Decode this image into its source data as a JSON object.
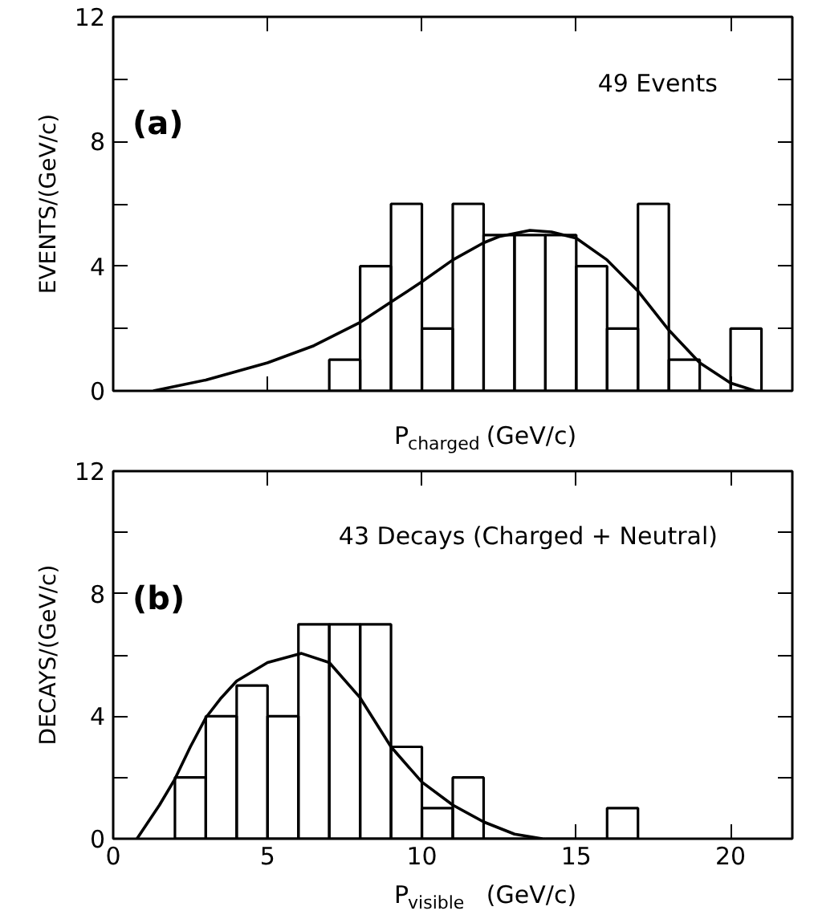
{
  "chart_data": [
    {
      "type": "histogram",
      "xlabel": "P$_{charged}$ (GeV/c)",
      "ylabel": "EVENTS/(GeV/c)",
      "annotations": [
        "(a)",
        "49 Events"
      ],
      "bins": [
        7,
        8,
        9,
        10,
        11,
        12,
        13,
        14,
        15,
        16,
        17,
        18,
        19,
        20,
        21
      ],
      "values": [
        1,
        4,
        6,
        2,
        6,
        5,
        5,
        5,
        4,
        2,
        6,
        1,
        0,
        2
      ],
      "color": "#000000",
      "series": [
        {
          "type": "line",
          "color": "#000000",
          "x": [
            1.3,
            3,
            5,
            6.5,
            8,
            9,
            10,
            11,
            12,
            12.5,
            13.5,
            14.2,
            15,
            16,
            17,
            18,
            19,
            20,
            20.8
          ],
          "values": [
            0,
            0.35,
            0.9,
            1.45,
            2.2,
            2.85,
            3.5,
            4.2,
            4.75,
            4.95,
            5.15,
            5.1,
            4.9,
            4.2,
            3.2,
            1.95,
            0.9,
            0.25,
            0
          ]
        }
      ],
      "xlim": [
        0,
        22
      ],
      "ylim": [
        0,
        12
      ],
      "xticks": [
        0,
        5,
        10,
        15,
        20
      ],
      "yticks": [
        0,
        {
          "value": 2,
          "label": null
        },
        4,
        {
          "value": 6,
          "label": null
        },
        8,
        {
          "value": 10,
          "label": null
        },
        12
      ],
      "tick_labels": "y"
    },
    {
      "type": "histogram",
      "xlabel": "P$_{visible}$ (GeV/c)",
      "ylabel": "DECAYS/(GeV/c)",
      "annotations": [
        "(b)",
        "43 Decays (Charged + Neutral)"
      ],
      "bins": [
        2,
        3,
        4,
        5,
        6,
        7,
        8,
        9,
        10,
        11,
        12,
        13,
        14,
        15,
        16,
        17
      ],
      "values": [
        2,
        4,
        5,
        4,
        7,
        7,
        7,
        3,
        1,
        2,
        0,
        0,
        0,
        0,
        1
      ],
      "color": "#000000",
      "series": [
        {
          "type": "line",
          "color": "#000000",
          "x": [
            0.77,
            1.5,
            2,
            2.5,
            3,
            3.5,
            4,
            5,
            6.1,
            7,
            8,
            9,
            10,
            11,
            12,
            13,
            13.9
          ],
          "values": [
            0,
            1.1,
            1.95,
            3,
            3.95,
            4.6,
            5.15,
            5.75,
            6.05,
            5.75,
            4.6,
            3.0,
            1.85,
            1.1,
            0.55,
            0.15,
            0
          ]
        }
      ],
      "xlim": [
        0,
        22
      ],
      "ylim": [
        0,
        12
      ],
      "xticks": [
        0,
        5,
        10,
        15,
        20
      ],
      "yticks": [
        0,
        {
          "value": 2,
          "label": null
        },
        4,
        {
          "value": 6,
          "label": null
        },
        8,
        {
          "value": 10,
          "label": null
        },
        12
      ]
    }
  ]
}
